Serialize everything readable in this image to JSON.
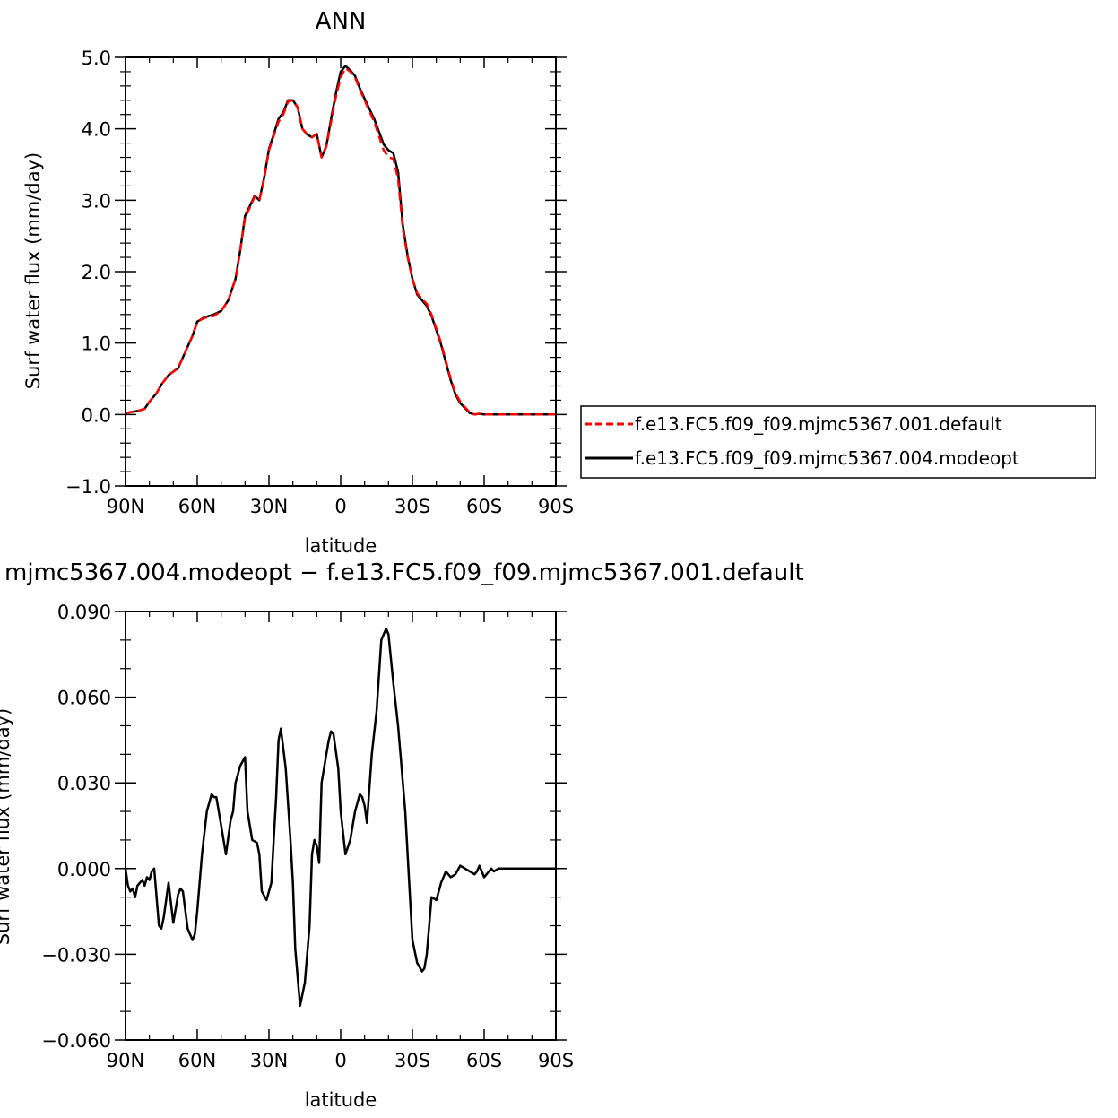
{
  "chart_data": [
    {
      "type": "line",
      "title": "ANN",
      "xlabel": "latitude",
      "ylabel": "Surf water flux (mm/day)",
      "xlim": [
        -90,
        90
      ],
      "ylim": [
        -1.0,
        5.0
      ],
      "x_tick_values": [
        -90,
        -60,
        -30,
        0,
        30,
        60,
        90
      ],
      "x_tick_labels": [
        "90N",
        "60N",
        "30N",
        "0",
        "30S",
        "60S",
        "90S"
      ],
      "y_tick_values": [
        -1.0,
        0.0,
        1.0,
        2.0,
        3.0,
        4.0,
        5.0
      ],
      "y_tick_labels": [
        "−1.0",
        "0.0",
        "1.0",
        "2.0",
        "3.0",
        "4.0",
        "5.0"
      ],
      "x": [
        -90,
        -85,
        -82,
        -80,
        -77,
        -75,
        -72,
        -70,
        -68,
        -66,
        -64,
        -62,
        -60,
        -57,
        -53,
        -50,
        -47,
        -44,
        -42,
        -40,
        -38,
        -36,
        -34,
        -32,
        -30,
        -28,
        -26,
        -24,
        -22,
        -20,
        -18,
        -16,
        -14,
        -12,
        -10,
        -8,
        -6,
        -4,
        -2,
        0,
        2,
        4,
        6,
        8,
        10,
        12,
        14,
        16,
        18,
        20,
        22,
        24,
        26,
        28,
        30,
        32,
        34,
        36,
        38,
        40,
        42,
        44,
        46,
        48,
        50,
        52,
        54,
        56,
        58,
        60,
        62,
        64,
        66,
        68,
        70,
        73,
        76,
        79,
        82,
        85,
        88,
        90
      ],
      "series": [
        {
          "name": "f.e13.FC5.f09_f09.mjmc5367.001.default",
          "color": "#ff0000",
          "dash": "dashed",
          "y": [
            0.02,
            0.05,
            0.08,
            0.18,
            0.3,
            0.42,
            0.55,
            0.6,
            0.65,
            0.8,
            0.95,
            1.1,
            1.3,
            1.35,
            1.38,
            1.45,
            1.6,
            1.9,
            2.3,
            2.75,
            2.9,
            3.05,
            3.0,
            3.3,
            3.7,
            3.9,
            4.1,
            4.2,
            4.38,
            4.4,
            4.3,
            4.0,
            3.92,
            3.88,
            3.93,
            3.6,
            3.75,
            4.1,
            4.45,
            4.72,
            4.85,
            4.8,
            4.72,
            4.55,
            4.4,
            4.25,
            4.1,
            3.9,
            3.7,
            3.6,
            3.58,
            3.3,
            2.6,
            2.2,
            1.9,
            1.7,
            1.62,
            1.55,
            1.4,
            1.2,
            1.0,
            0.75,
            0.5,
            0.3,
            0.18,
            0.1,
            0.03,
            0.0,
            0.01,
            0.0,
            0.0,
            0.0,
            0.0,
            0.0,
            0.0,
            0.0,
            0.0,
            0.0,
            0.0,
            0.0,
            0.0,
            0.0
          ]
        },
        {
          "name": "f.e13.FC5.f09_f09.mjmc5367.004.modeopt",
          "color": "#000000",
          "dash": "solid",
          "y": [
            0.02,
            0.05,
            0.08,
            0.18,
            0.3,
            0.42,
            0.55,
            0.6,
            0.65,
            0.8,
            0.95,
            1.1,
            1.3,
            1.36,
            1.4,
            1.45,
            1.6,
            1.9,
            2.3,
            2.78,
            2.92,
            3.06,
            3.0,
            3.32,
            3.72,
            3.92,
            4.14,
            4.23,
            4.4,
            4.4,
            4.3,
            4.0,
            3.92,
            3.88,
            3.93,
            3.6,
            3.76,
            4.14,
            4.5,
            4.8,
            4.88,
            4.82,
            4.74,
            4.57,
            4.42,
            4.28,
            4.14,
            3.96,
            3.78,
            3.7,
            3.66,
            3.4,
            2.65,
            2.22,
            1.9,
            1.68,
            1.6,
            1.52,
            1.38,
            1.18,
            0.98,
            0.73,
            0.48,
            0.28,
            0.16,
            0.09,
            0.02,
            0.0,
            0.01,
            0.0,
            0.0,
            0.0,
            0.0,
            0.0,
            0.0,
            0.0,
            0.0,
            0.0,
            0.0,
            0.0,
            0.0,
            0.0
          ]
        }
      ],
      "legend": {
        "position": "right",
        "entries": [
          "f.e13.FC5.f09_f09.mjmc5367.001.default",
          "f.e13.FC5.f09_f09.mjmc5367.004.modeopt"
        ]
      }
    },
    {
      "type": "line",
      "title": "mjmc5367.004.modeopt − f.e13.FC5.f09_f09.mjmc5367.001.default",
      "xlabel": "latitude",
      "ylabel": "Surf water flux (mm/day)",
      "xlim": [
        -90,
        90
      ],
      "ylim": [
        -0.06,
        0.09
      ],
      "x_tick_values": [
        -90,
        -60,
        -30,
        0,
        30,
        60,
        90
      ],
      "x_tick_labels": [
        "90N",
        "60N",
        "30N",
        "0",
        "30S",
        "60S",
        "90S"
      ],
      "y_tick_values": [
        -0.06,
        -0.03,
        0.0,
        0.03,
        0.06,
        0.09
      ],
      "y_tick_labels": [
        "−0.060",
        "−0.030",
        "0.000",
        "0.030",
        "0.060",
        "0.090"
      ],
      "series": [
        {
          "color": "#000000",
          "dash": "solid",
          "x": [
            -90,
            -89,
            -88,
            -87,
            -86,
            -85,
            -83,
            -82,
            -81,
            -80,
            -79,
            -78,
            -76,
            -75,
            -74,
            -72,
            -70,
            -68,
            -67,
            -66,
            -64,
            -62,
            -61,
            -60,
            -58,
            -56,
            -54,
            -53,
            -52,
            -50,
            -48,
            -46,
            -45,
            -44,
            -42,
            -40,
            -39,
            -38,
            -37,
            -35,
            -34,
            -33,
            -31,
            -29,
            -28,
            -27,
            -26,
            -25,
            -23,
            -21,
            -20,
            -19,
            -17,
            -15,
            -13,
            -12,
            -11,
            -10,
            -9,
            -8,
            -6,
            -5,
            -4,
            -3,
            -1,
            0,
            2,
            4,
            6,
            8,
            9,
            10,
            11,
            13,
            15,
            17,
            18,
            19,
            20,
            22,
            24,
            25,
            27,
            29,
            30,
            32,
            34,
            35,
            36,
            37,
            38,
            40,
            42,
            44,
            46,
            48,
            50,
            52,
            54,
            56,
            57,
            58,
            60,
            62,
            63,
            64,
            66,
            68,
            70,
            71,
            72,
            74,
            76,
            78,
            80,
            82,
            84,
            85,
            86,
            87,
            88,
            90
          ],
          "y": [
            0.0,
            -0.006,
            -0.008,
            -0.007,
            -0.01,
            -0.006,
            -0.004,
            -0.006,
            -0.003,
            -0.004,
            -0.001,
            0.0,
            -0.02,
            -0.021,
            -0.017,
            -0.005,
            -0.019,
            -0.009,
            -0.007,
            -0.008,
            -0.021,
            -0.025,
            -0.023,
            -0.015,
            0.005,
            0.02,
            0.026,
            0.025,
            0.025,
            0.015,
            0.005,
            0.017,
            0.02,
            0.03,
            0.036,
            0.039,
            0.02,
            0.015,
            0.01,
            0.009,
            0.005,
            -0.008,
            -0.011,
            -0.005,
            0.01,
            0.025,
            0.045,
            0.049,
            0.035,
            0.01,
            -0.005,
            -0.028,
            -0.048,
            -0.04,
            -0.02,
            0.005,
            0.01,
            0.008,
            0.002,
            0.03,
            0.04,
            0.045,
            0.048,
            0.047,
            0.035,
            0.02,
            0.005,
            0.01,
            0.02,
            0.026,
            0.025,
            0.022,
            0.016,
            0.04,
            0.055,
            0.08,
            0.082,
            0.084,
            0.082,
            0.065,
            0.05,
            0.04,
            0.02,
            -0.01,
            -0.025,
            -0.033,
            -0.036,
            -0.035,
            -0.03,
            -0.02,
            -0.01,
            -0.011,
            -0.005,
            -0.001,
            -0.003,
            -0.002,
            0.001,
            0.0,
            -0.001,
            -0.002,
            -0.001,
            0.001,
            -0.003,
            -0.001,
            0.0,
            -0.001,
            0.0,
            0.0,
            0.0,
            0.0,
            0.0,
            0.0,
            0.0,
            0.0,
            0.0,
            0.0,
            0.0,
            0.0,
            0.0,
            0.0,
            0.0,
            0.0
          ]
        }
      ]
    }
  ]
}
